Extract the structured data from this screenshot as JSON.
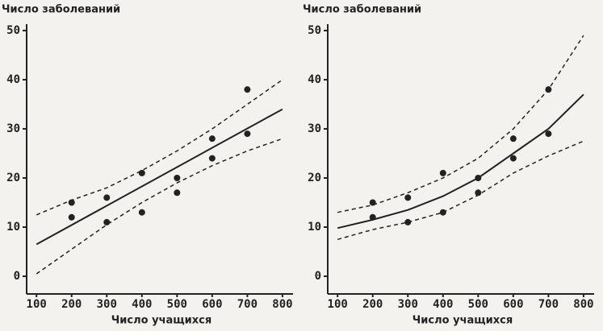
{
  "chart_data": [
    {
      "type": "scatter",
      "y_label": "Число заболеваний",
      "x_label": "Число учащихся",
      "xlim": [
        72,
        830
      ],
      "ylim": [
        -3.6,
        51.3
      ],
      "xticks": [
        100,
        200,
        300,
        400,
        500,
        600,
        700,
        800
      ],
      "yticks": [
        0,
        10,
        20,
        30,
        40,
        50
      ],
      "color": "#222222",
      "series": [
        {
          "kind": "points",
          "x": [
            200,
            200,
            300,
            300,
            400,
            400,
            500,
            500,
            600,
            600,
            700,
            700
          ],
          "values": [
            15,
            12,
            16,
            11,
            21,
            13,
            20,
            17,
            28,
            24,
            38,
            29
          ]
        },
        {
          "kind": "line",
          "dashed": false,
          "x": [
            100,
            800
          ],
          "values": [
            6.5,
            34
          ]
        },
        {
          "kind": "line",
          "dashed": true,
          "x": [
            100,
            200,
            300,
            400,
            500,
            600,
            700,
            800
          ],
          "values": [
            12.5,
            15.5,
            18,
            21.5,
            25.5,
            30,
            35,
            40
          ]
        },
        {
          "kind": "line",
          "dashed": true,
          "x": [
            100,
            200,
            300,
            400,
            500,
            600,
            700,
            800
          ],
          "values": [
            0.5,
            5.5,
            10.5,
            15,
            19,
            22.5,
            25.5,
            28
          ]
        }
      ]
    },
    {
      "type": "scatter",
      "y_label": "Число заболеваний",
      "x_label": "Число учащихся",
      "xlim": [
        72,
        830
      ],
      "ylim": [
        -3.6,
        51.3
      ],
      "xticks": [
        100,
        200,
        300,
        400,
        500,
        600,
        700,
        800
      ],
      "yticks": [
        0,
        10,
        20,
        30,
        40,
        50
      ],
      "color": "#222222",
      "series": [
        {
          "kind": "points",
          "x": [
            200,
            200,
            300,
            300,
            400,
            400,
            500,
            500,
            600,
            600,
            700,
            700
          ],
          "values": [
            15,
            12,
            16,
            11,
            21,
            13,
            20,
            17,
            28,
            24,
            38,
            29
          ]
        },
        {
          "kind": "line",
          "dashed": false,
          "x": [
            100,
            200,
            300,
            400,
            500,
            600,
            700,
            800
          ],
          "values": [
            9.8,
            11.5,
            13.5,
            16.3,
            20,
            25,
            30,
            37
          ]
        },
        {
          "kind": "line",
          "dashed": true,
          "x": [
            100,
            200,
            300,
            400,
            500,
            600,
            700,
            800
          ],
          "values": [
            13,
            14.5,
            17,
            20,
            24,
            30,
            38,
            49
          ]
        },
        {
          "kind": "line",
          "dashed": true,
          "x": [
            100,
            200,
            300,
            400,
            500,
            600,
            700,
            800
          ],
          "values": [
            7.5,
            9.5,
            11,
            13,
            16.5,
            21,
            24.5,
            27.5
          ]
        }
      ]
    }
  ]
}
